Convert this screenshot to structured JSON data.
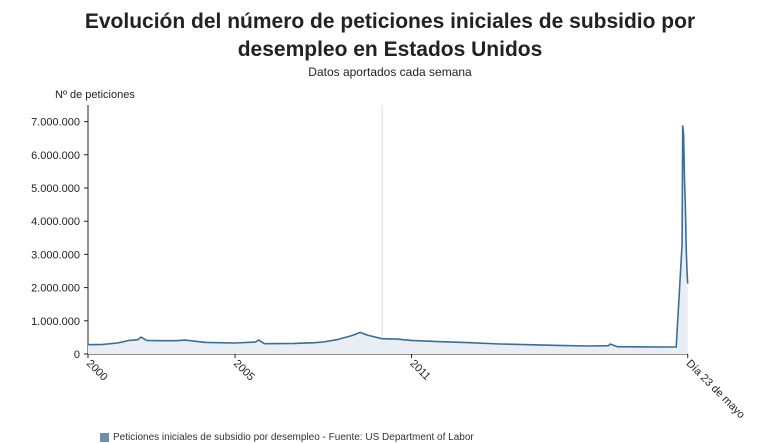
{
  "title": "Evolución del número de peticiones iniciales de subsidio por desempleo en Estados Unidos",
  "title_lines": [
    "Evolución del número de peticiones iniciales de subsidio por",
    "desempleo en Estados Unidos"
  ],
  "subtitle": "Datos aportados cada semana",
  "footer": {
    "legend_text": "Peticiones iniciales de subsidio por desempleo - Fuente: US Department of Labor"
  },
  "colors": {
    "line": "#3d6e91",
    "area": "#e8eef4",
    "axis": "#222222",
    "grid": "#d7dde3"
  },
  "chart_data": {
    "type": "area",
    "title": "Evolución del número de peticiones iniciales de subsidio por desempleo en Estados Unidos",
    "subtitle": "Datos aportados cada semana",
    "ylabel": "Nº de peticiones",
    "xlabel": "",
    "xlim": [
      2000.0,
      2020.4
    ],
    "ylim": [
      0,
      7500000
    ],
    "yticks": [
      0,
      1000000,
      2000000,
      3000000,
      4000000,
      5000000,
      6000000,
      7000000
    ],
    "ytick_labels": [
      "0",
      "1.000.000",
      "2.000.000",
      "3.000.000",
      "4.000.000",
      "5.000.000",
      "6.000.000",
      "7.000.000"
    ],
    "xticks": [
      2000,
      2005,
      2011,
      2020.39
    ],
    "xtick_labels": [
      "2000",
      "2005",
      "2011",
      "Día 23 de mayo"
    ],
    "vertical_markers": [
      2010.0
    ],
    "grid": false,
    "series": [
      {
        "x": [
          2000.0,
          2000.5,
          2001.0,
          2001.4,
          2001.7,
          2001.8,
          2002.0,
          2002.5,
          2003.0,
          2003.3,
          2004.0,
          2005.0,
          2005.7,
          2005.8,
          2006.0,
          2007.0,
          2007.7,
          2008.0,
          2008.5,
          2009.0,
          2009.25,
          2009.5,
          2010.0,
          2010.5,
          2011.0,
          2012.0,
          2013.0,
          2014.0,
          2015.0,
          2016.0,
          2017.0,
          2017.7,
          2017.75,
          2018.0,
          2019.0,
          2020.0,
          2020.2,
          2020.22,
          2020.25,
          2020.28,
          2020.31,
          2020.34,
          2020.37,
          2020.39
        ],
        "y": [
          280000,
          290000,
          330000,
          410000,
          430000,
          510000,
          410000,
          400000,
          400000,
          420000,
          350000,
          330000,
          360000,
          420000,
          310000,
          320000,
          340000,
          360000,
          440000,
          560000,
          650000,
          570000,
          460000,
          450000,
          410000,
          370000,
          340000,
          300000,
          280000,
          260000,
          240000,
          250000,
          300000,
          220000,
          215000,
          210000,
          3310000,
          6870000,
          6620000,
          5240000,
          4400000,
          3170000,
          2440000,
          2120000
        ]
      }
    ]
  }
}
